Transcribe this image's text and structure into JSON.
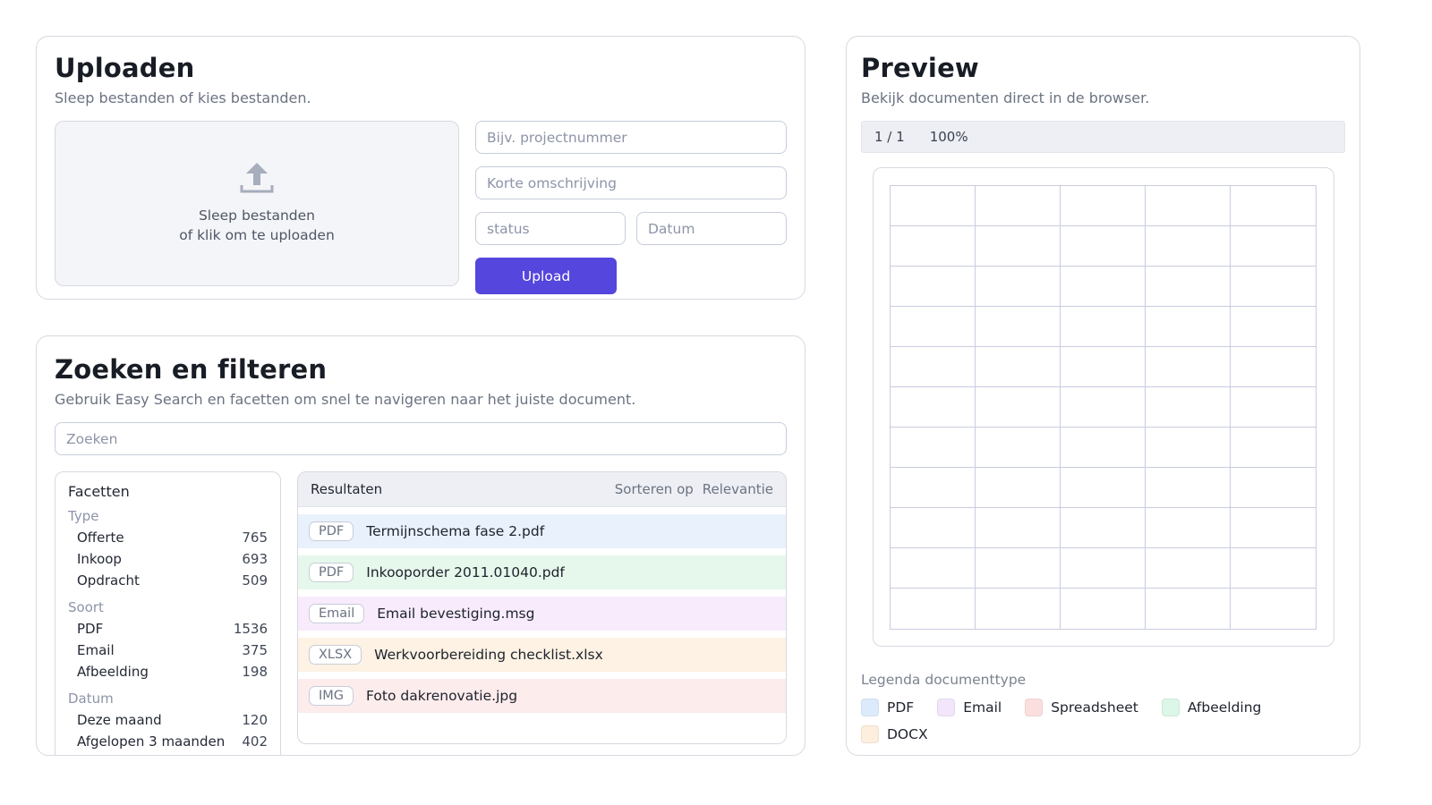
{
  "colors": {
    "accent": "#5546dd"
  },
  "upload": {
    "title": "Uploaden",
    "subtitle": "Sleep bestanden of kies bestanden.",
    "dropzone": {
      "line1": "Sleep bestanden",
      "line2": "of klik om te uploaden"
    },
    "fields": {
      "project_placeholder": "Bijv. projectnummer",
      "description_placeholder": "Korte omschrijving",
      "status_placeholder": "status",
      "date_placeholder": "Datum"
    },
    "button_label": "Upload"
  },
  "search": {
    "title": "Zoeken en filteren",
    "subtitle": "Gebruik Easy Search en facetten om snel te navigeren naar het juiste document.",
    "search_placeholder": "Zoeken",
    "facets": {
      "title": "Facetten",
      "groups": [
        {
          "label": "Type",
          "items": [
            {
              "name": "Offerte",
              "count": "765"
            },
            {
              "name": "Inkoop",
              "count": "693"
            },
            {
              "name": "Opdracht",
              "count": "509"
            }
          ]
        },
        {
          "label": "Soort",
          "items": [
            {
              "name": "PDF",
              "count": "1536"
            },
            {
              "name": "Email",
              "count": "375"
            },
            {
              "name": "Afbeelding",
              "count": "198"
            }
          ]
        },
        {
          "label": "Datum",
          "items": [
            {
              "name": "Deze maand",
              "count": "120"
            },
            {
              "name": "Afgelopen 3 maanden",
              "count": "402"
            }
          ]
        }
      ]
    },
    "results": {
      "title": "Resultaten",
      "sort_label": "Sorteren op",
      "sort_value": "Relevantie",
      "items": [
        {
          "badge": "PDF",
          "filename": "Termijnschema fase 2.pdf",
          "row_color": "#e9f1fc"
        },
        {
          "badge": "PDF",
          "filename": "Inkooporder 2011.01040.pdf",
          "row_color": "#e6f8ec"
        },
        {
          "badge": "Email",
          "filename": "Email bevestiging.msg",
          "row_color": "#f8ecfc"
        },
        {
          "badge": "XLSX",
          "filename": "Werkvoorbereiding checklist.xlsx",
          "row_color": "#fdf2e3"
        },
        {
          "badge": "IMG",
          "filename": "Foto dakrenovatie.jpg",
          "row_color": "#fdecec"
        }
      ]
    }
  },
  "preview": {
    "title": "Preview",
    "subtitle": "Bekijk documenten direct in de browser.",
    "toolbar": {
      "page_indicator": "1 / 1",
      "zoom_level": "100%"
    },
    "grid": {
      "columns": 5,
      "rows": 11
    },
    "legend": {
      "title": "Legenda documenttype",
      "items": [
        {
          "label": "PDF",
          "color": "#dcebfb"
        },
        {
          "label": "Email",
          "color": "#f3e6fb"
        },
        {
          "label": "Spreadsheet",
          "color": "#fbdfdf"
        },
        {
          "label": "Afbeelding",
          "color": "#dcf6e7"
        },
        {
          "label": "DOCX",
          "color": "#fdeedd"
        }
      ]
    }
  }
}
